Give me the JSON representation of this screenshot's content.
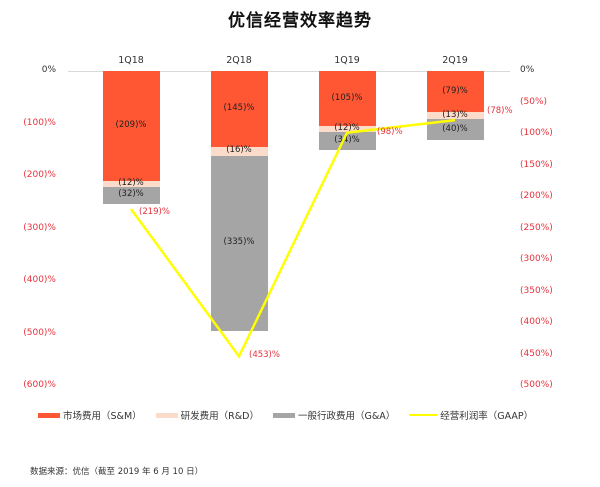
{
  "title": "优信经营效率趋势",
  "source_note": "数据来源：优信（截至 2019 年 6 月 10 日）",
  "colors": {
    "sm": "#ff5733",
    "rd": "#fbdcca",
    "ga": "#a5a5a5",
    "gaap": "#ffff00",
    "negative_label": "#e8323c"
  },
  "legend": [
    {
      "label": "市场费用（S&M）",
      "color": "#ff5733",
      "type": "bar"
    },
    {
      "label": "研发费用（R&D）",
      "color": "#fbdcca",
      "type": "bar"
    },
    {
      "label": "一般行政费用（G&A）",
      "color": "#a5a5a5",
      "type": "bar"
    },
    {
      "label": "经营利润率（GAAP）",
      "color": "#ffff00",
      "type": "line"
    }
  ],
  "left_axis_ticks": [
    "0%",
    "(100)%",
    "(200)%",
    "(300)%",
    "(400)%",
    "(500)%",
    "(600)%"
  ],
  "right_axis_ticks": [
    "0%",
    "(50%)",
    "(100%)",
    "(150%)",
    "(200%)",
    "(250%)",
    "(300%)",
    "(350%)",
    "(400%)",
    "(450%)",
    "(500%)"
  ],
  "chart_data": {
    "type": "bar",
    "title": "优信经营效率趋势",
    "categories": [
      "1Q18",
      "2Q18",
      "1Q19",
      "2Q19"
    ],
    "series": [
      {
        "name": "市场费用（S&M）",
        "type": "stacked_bar",
        "axis": "left",
        "values": [
          -209,
          -145,
          -105,
          -79
        ],
        "labels": [
          "(209)%",
          "(145)%",
          "(105)%",
          "(79)%"
        ]
      },
      {
        "name": "研发费用（R&D）",
        "type": "stacked_bar",
        "axis": "left",
        "values": [
          -12,
          -16,
          -12,
          -13
        ],
        "labels": [
          "(12)%",
          "(16)%",
          "(12)%",
          "(13)%"
        ]
      },
      {
        "name": "一般行政费用（G&A）",
        "type": "stacked_bar",
        "axis": "left",
        "values": [
          -32,
          -335,
          -34,
          -40
        ],
        "labels": [
          "(32)%",
          "(335)%",
          "(34)%",
          "(40)%"
        ]
      },
      {
        "name": "经营利润率（GAAP）",
        "type": "line",
        "axis": "right",
        "values": [
          -219,
          -453,
          -98,
          -78
        ],
        "labels": [
          "(219)%",
          "(453)%",
          "(98)%",
          "(78)%"
        ]
      }
    ],
    "left_axis": {
      "ylim": [
        -600,
        0
      ],
      "ticks": [
        0,
        -100,
        -200,
        -300,
        -400,
        -500,
        -600
      ]
    },
    "right_axis": {
      "ylim": [
        -500,
        0
      ],
      "ticks": [
        0,
        -50,
        -100,
        -150,
        -200,
        -250,
        -300,
        -350,
        -400,
        -450,
        -500
      ]
    },
    "xlabel": "",
    "ylabel": "",
    "legend_position": "bottom",
    "grid": false,
    "category_axis_position": "top"
  }
}
